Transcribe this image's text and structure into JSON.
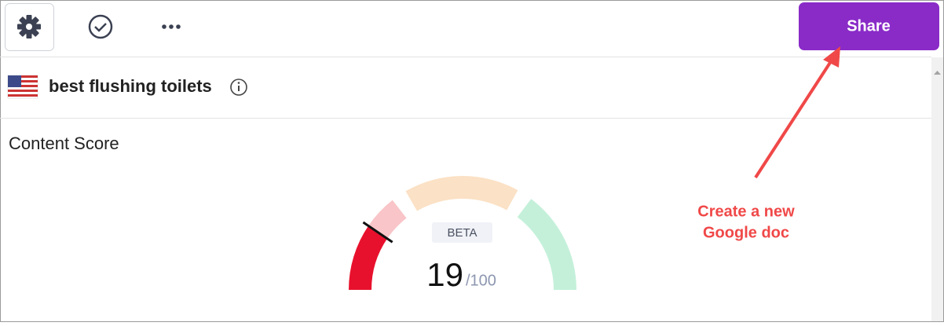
{
  "toolbar": {
    "share_button": "Share"
  },
  "keyword": {
    "text": "best flushing toilets"
  },
  "content_score": {
    "title": "Content Score",
    "badge": "BETA",
    "gauge": {
      "score": 19,
      "max": {
        "value": 100,
        "label": "/100"
      }
    }
  },
  "annotation": {
    "lines": [
      "Create a new",
      "Google doc"
    ]
  }
}
